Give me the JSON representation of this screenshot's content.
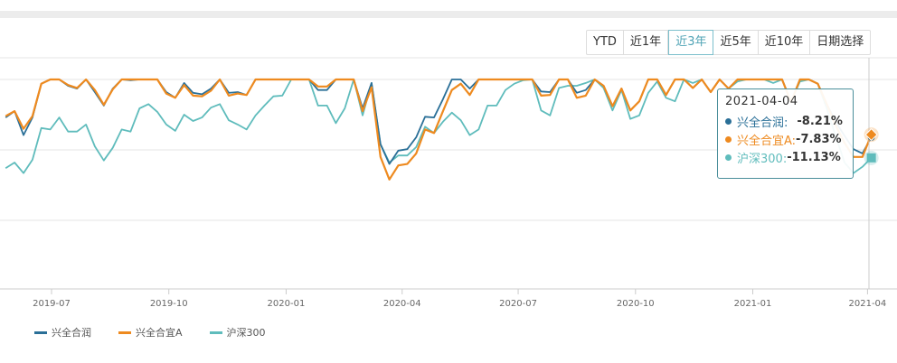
{
  "range_buttons": [
    {
      "label": "YTD",
      "active": false
    },
    {
      "label": "近1年",
      "active": false
    },
    {
      "label": "近3年",
      "active": true
    },
    {
      "label": "近5年",
      "active": false
    },
    {
      "label": "近10年",
      "active": false
    },
    {
      "label": "日期选择",
      "active": false
    }
  ],
  "tooltip": {
    "date": "2021-04-04",
    "rows": [
      {
        "name": "兴全合润:",
        "value": "-8.21%",
        "color": "#2a6f97"
      },
      {
        "name": "兴全合宜A:",
        "value": "-7.83%",
        "color": "#ee8a1f"
      },
      {
        "name": "沪深300:",
        "value": "-11.13%",
        "color": "#5fbcbc"
      }
    ]
  },
  "legend": [
    {
      "label": "兴全合润",
      "color": "#2a6f97"
    },
    {
      "label": "兴全合宜A",
      "color": "#ee8a1f"
    },
    {
      "label": "沪深300",
      "color": "#5fbcbc"
    }
  ],
  "chart_data": {
    "type": "line",
    "y_unit": "%",
    "ylim": [
      -30,
      3
    ],
    "grid": true,
    "legend_position": "bottom-left",
    "x_ticks": [
      "2019-07",
      "2019-10",
      "2020-01",
      "2020-04",
      "2020-07",
      "2020-10",
      "2021-01",
      "2021-04"
    ],
    "x": [
      "2019-05-26",
      "2019-06-02",
      "2019-06-09",
      "2019-06-16",
      "2019-06-23",
      "2019-06-30",
      "2019-07-07",
      "2019-07-14",
      "2019-07-21",
      "2019-07-28",
      "2019-08-04",
      "2019-08-11",
      "2019-08-18",
      "2019-08-25",
      "2019-09-01",
      "2019-09-08",
      "2019-09-15",
      "2019-09-22",
      "2019-09-29",
      "2019-10-06",
      "2019-10-13",
      "2019-10-20",
      "2019-10-27",
      "2019-11-03",
      "2019-11-10",
      "2019-11-17",
      "2019-11-24",
      "2019-12-01",
      "2019-12-08",
      "2019-12-15",
      "2019-12-22",
      "2019-12-29",
      "2020-01-05",
      "2020-01-12",
      "2020-01-19",
      "2020-01-26",
      "2020-02-02",
      "2020-02-09",
      "2020-02-16",
      "2020-02-23",
      "2020-03-01",
      "2020-03-08",
      "2020-03-15",
      "2020-03-22",
      "2020-03-29",
      "2020-04-05",
      "2020-04-12",
      "2020-04-19",
      "2020-04-26",
      "2020-05-03",
      "2020-05-10",
      "2020-05-17",
      "2020-05-24",
      "2020-05-31",
      "2020-06-07",
      "2020-06-14",
      "2020-06-21",
      "2020-06-28",
      "2020-07-05",
      "2020-07-12",
      "2020-07-19",
      "2020-07-26",
      "2020-08-02",
      "2020-08-09",
      "2020-08-16",
      "2020-08-23",
      "2020-08-30",
      "2020-09-06",
      "2020-09-13",
      "2020-09-20",
      "2020-09-27",
      "2020-10-04",
      "2020-10-11",
      "2020-10-18",
      "2020-10-25",
      "2020-11-01",
      "2020-11-08",
      "2020-11-15",
      "2020-11-22",
      "2020-11-29",
      "2020-12-06",
      "2020-12-13",
      "2020-12-20",
      "2020-12-27",
      "2021-01-03",
      "2021-01-10",
      "2021-01-17",
      "2021-01-24",
      "2021-01-31",
      "2021-02-07",
      "2021-02-14",
      "2021-02-21",
      "2021-02-28",
      "2021-03-07",
      "2021-03-14",
      "2021-03-21",
      "2021-03-28",
      "2021-04-04"
    ],
    "series": [
      {
        "name": "兴全合润",
        "color": "#2a6f97",
        "values": [
          -5.4,
          -4.5,
          -7.9,
          -5.4,
          -0.6,
          0,
          0,
          -0.9,
          -1.3,
          0,
          -1.8,
          -3.7,
          -1.3,
          0,
          -0.1,
          0,
          0,
          0,
          -1.8,
          -2.6,
          -0.5,
          -1.9,
          -2.1,
          -1.3,
          0,
          -1.9,
          -1.8,
          -2.2,
          0,
          0,
          0,
          0,
          0,
          0,
          0,
          -1.5,
          -1.5,
          0,
          0,
          0,
          -4.1,
          -0.5,
          -9.2,
          -12.0,
          -10.1,
          -9.9,
          -8.2,
          -5.3,
          -5.4,
          -2.8,
          0,
          0,
          -1.3,
          0,
          0,
          0,
          0,
          0,
          0,
          0,
          -1.7,
          -1.8,
          0,
          0,
          -1.9,
          -1.5,
          0,
          -0.9,
          -3.8,
          -1.3,
          -4.4,
          -3.1,
          0,
          0,
          -2.2,
          0,
          0,
          -1.2,
          0,
          -1.8,
          0,
          -1.3,
          0,
          0,
          0,
          0,
          0,
          0,
          -3.2,
          0,
          0,
          -0.6,
          -3.5,
          -6.0,
          -8.0,
          -9.9,
          -10.5,
          -8.21
        ]
      },
      {
        "name": "兴全合宜A",
        "color": "#ee8a1f",
        "values": [
          -5.2,
          -4.5,
          -7.0,
          -5.2,
          -0.6,
          0,
          0,
          -0.8,
          -1.2,
          0,
          -1.5,
          -3.6,
          -1.4,
          0,
          0,
          0,
          0,
          0,
          -2.0,
          -2.6,
          -0.8,
          -2.3,
          -2.4,
          -1.6,
          0,
          -2.3,
          -2.0,
          -2.2,
          0,
          0,
          0,
          0,
          0,
          0,
          0,
          -1.0,
          -1.0,
          0,
          0,
          0,
          -4.5,
          -1.1,
          -11.0,
          -14.2,
          -12.2,
          -12.0,
          -10.5,
          -7.1,
          -7.6,
          -4.5,
          -1.5,
          -0.6,
          -2.2,
          0,
          0,
          0,
          0,
          0,
          0,
          0,
          -2.3,
          -2.2,
          0,
          0,
          -2.6,
          -2.3,
          0,
          -0.9,
          -3.8,
          -1.3,
          -4.4,
          -3.1,
          0,
          0,
          -2.2,
          0,
          0,
          -1.2,
          0,
          -1.8,
          0,
          -1.3,
          0,
          0,
          0,
          0,
          0,
          0,
          -3.2,
          0,
          0,
          -0.6,
          -3.5,
          -6.5,
          -9.0,
          -11.0,
          -11.0,
          -7.83
        ]
      },
      {
        "name": "沪深300",
        "color": "#5fbcbc",
        "values": [
          -12.6,
          -11.8,
          -13.3,
          -11.4,
          -6.9,
          -7.1,
          -5.4,
          -7.4,
          -7.4,
          -6.4,
          -9.5,
          -11.5,
          -9.7,
          -7.1,
          -7.4,
          -4.1,
          -3.5,
          -4.6,
          -6.4,
          -7.3,
          -5.0,
          -5.9,
          -5.4,
          -4.0,
          -3.5,
          -5.8,
          -6.4,
          -7.1,
          -5.1,
          -3.7,
          -2.4,
          -2.3,
          0,
          0,
          0,
          -3.7,
          -3.7,
          -6.2,
          -4.1,
          0,
          -5.1,
          -0.5,
          -9.2,
          -11.8,
          -10.8,
          -10.8,
          -9.6,
          -6.7,
          -7.6,
          -6.0,
          -4.7,
          -5.8,
          -7.9,
          -7.1,
          -3.7,
          -3.7,
          -1.5,
          -0.6,
          -0.1,
          0,
          -4.4,
          -5.1,
          -1.2,
          -0.9,
          -0.9,
          -0.5,
          0,
          -1.2,
          -4.4,
          -1.5,
          -5.6,
          -5.1,
          -1.9,
          -0.3,
          -2.6,
          -3.1,
          0,
          -0.5,
          0,
          -1.8,
          0,
          -1.3,
          -0.3,
          0,
          0,
          0,
          -0.5,
          0,
          -3.1,
          -0.3,
          0,
          -0.6,
          -4.1,
          -8.0,
          -11.8,
          -13.3,
          -12.4,
          -11.13
        ]
      }
    ]
  }
}
